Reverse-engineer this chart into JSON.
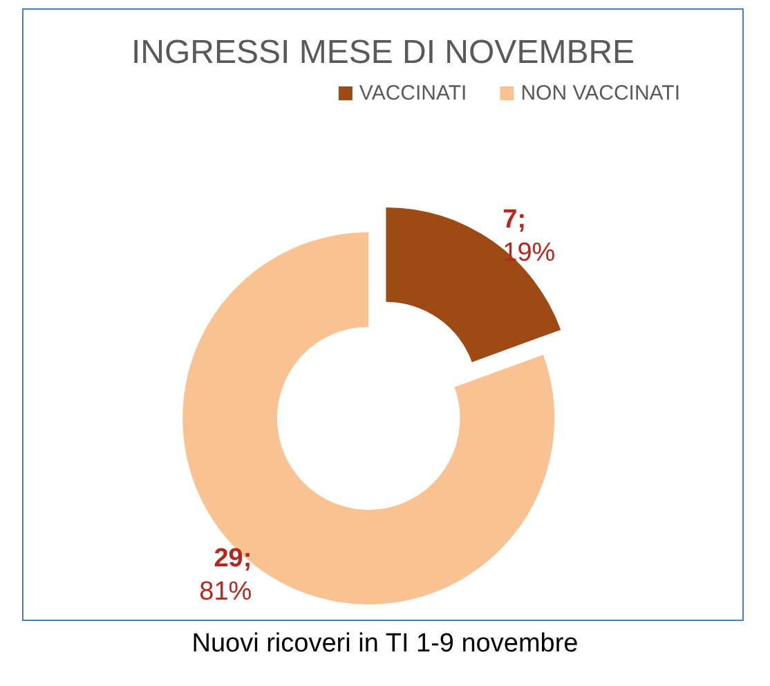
{
  "chart_data": {
    "type": "donut",
    "title": "INGRESSI MESE DI NOVEMBRE",
    "categories": [
      "VACCINATI",
      "NON VACCINATI"
    ],
    "values": [
      7,
      29
    ],
    "colors": [
      "#9e4a14",
      "#f9c293"
    ],
    "value_labels": [
      "7; 19%",
      "29; 81%"
    ],
    "legend": "top right",
    "annotations": [
      "Nuovi ricoveri in TI 1-9 novembre"
    ]
  }
}
